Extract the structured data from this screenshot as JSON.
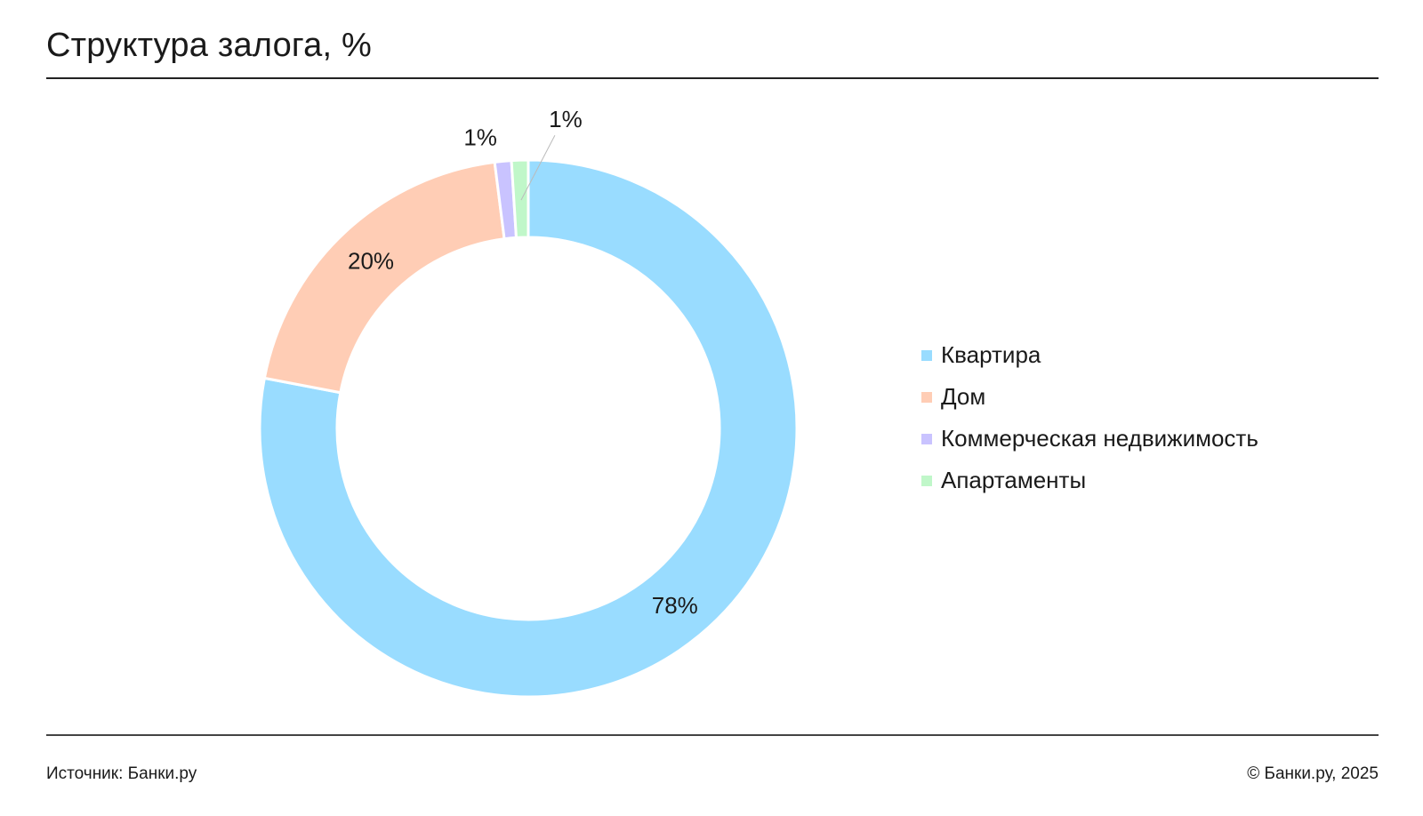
{
  "title": "Структура залога, %",
  "chart_data": {
    "type": "pie",
    "donut": true,
    "title": "Структура залога, %",
    "categories": [
      "Квартира",
      "Дом",
      "Коммерческая недвижимость",
      "Апартаменты"
    ],
    "values": [
      78,
      20,
      1,
      1
    ],
    "labels": [
      "78%",
      "20%",
      "1%",
      "1%"
    ],
    "colors": [
      "#99dcff",
      "#ffcdb5",
      "#c9c3ff",
      "#c0f7c9"
    ],
    "legend_position": "right"
  },
  "footer": {
    "source": "Источник: Банки.ру",
    "copyright": "© Банки.ру, 2025"
  }
}
